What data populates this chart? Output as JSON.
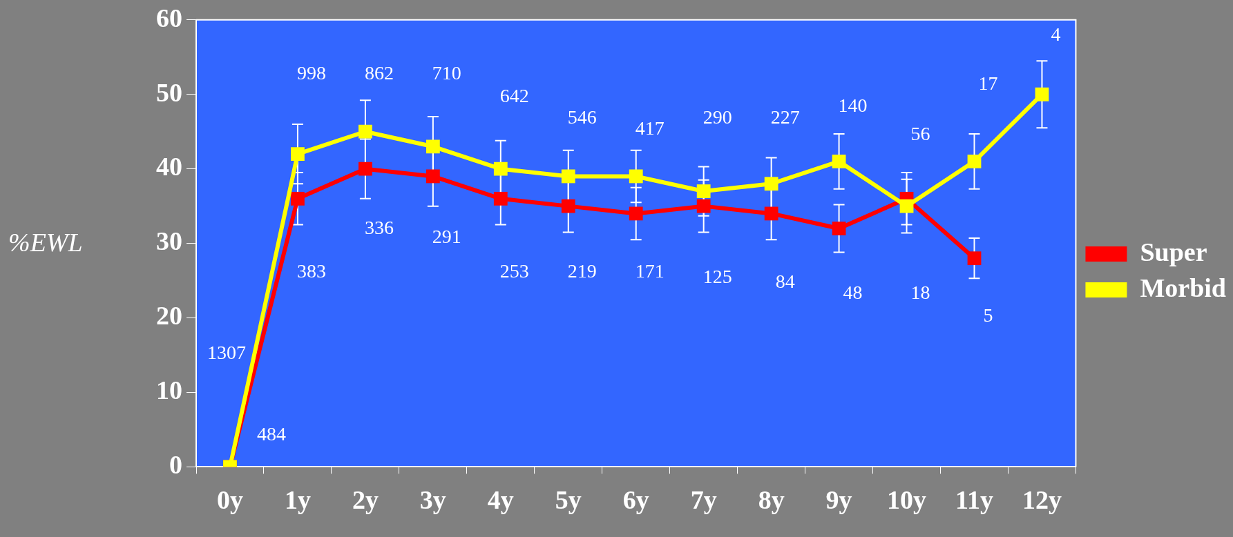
{
  "chart_data": {
    "type": "line",
    "ylabel": "%EWL",
    "categories": [
      "0y",
      "1y",
      "2y",
      "3y",
      "4y",
      "5y",
      "6y",
      "7y",
      "8y",
      "9y",
      "10y",
      "11y",
      "12y"
    ],
    "series": [
      {
        "name": "Super",
        "color": "#ff0000",
        "values": [
          0,
          36,
          40,
          39,
          36,
          35,
          34,
          35,
          34,
          32,
          36,
          28,
          null
        ],
        "errors": [
          null,
          3.5,
          4,
          4,
          3.5,
          3.5,
          3.5,
          3.5,
          3.5,
          3.2,
          3.5,
          2.7,
          null
        ]
      },
      {
        "name": "Morbid",
        "color": "#ffff00",
        "values": [
          0,
          42,
          45,
          43,
          40,
          39,
          39,
          37,
          38,
          41,
          35,
          41,
          50
        ],
        "errors": [
          null,
          4,
          4.2,
          4,
          3.8,
          3.5,
          3.5,
          3.3,
          3.5,
          3.7,
          3.6,
          3.7,
          4.5
        ]
      }
    ],
    "ylim": [
      0,
      60
    ],
    "yticks": [
      0,
      10,
      20,
      30,
      40,
      50,
      60
    ],
    "grid": false,
    "legend": "right",
    "marker": "square",
    "line_style": "solid",
    "annotations": [
      "1307",
      "484",
      "998",
      "383",
      "862",
      "336",
      "710",
      "291",
      "642",
      "253",
      "546",
      "219",
      "417",
      "171",
      "290",
      "125",
      "227",
      "84",
      "140",
      "48",
      "56",
      "18",
      "17",
      "5",
      "4"
    ]
  }
}
